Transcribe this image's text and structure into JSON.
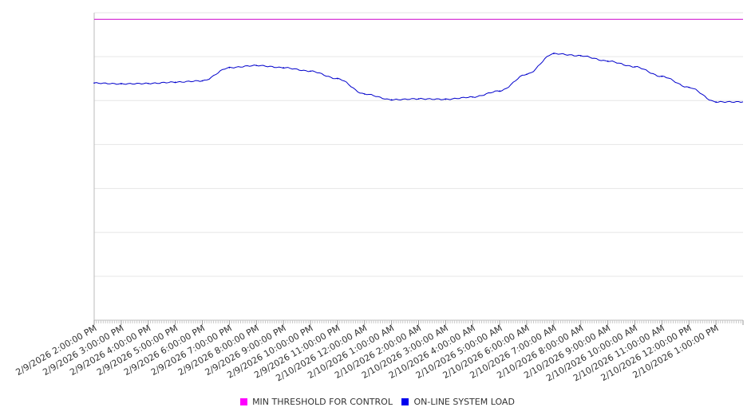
{
  "chart_data": {
    "type": "line",
    "title": "",
    "xlabel": "",
    "ylabel": "",
    "grid": true,
    "legend_position": "bottom",
    "ylim": [
      0,
      7
    ],
    "categories": [
      "2/9/2026 2:00:00 PM",
      "2/9/2026 3:00:00 PM",
      "2/9/2026 4:00:00 PM",
      "2/9/2026 5:00:00 PM",
      "2/9/2026 6:00:00 PM",
      "2/9/2026 7:00:00 PM",
      "2/9/2026 8:00:00 PM",
      "2/9/2026 9:00:00 PM",
      "2/9/2026 10:00:00 PM",
      "2/9/2026 11:00:00 PM",
      "2/10/2026 12:00:00 AM",
      "2/10/2026 1:00:00 AM",
      "2/10/2026 2:00:00 AM",
      "2/10/2026 3:00:00 AM",
      "2/10/2026 4:00:00 AM",
      "2/10/2026 5:00:00 AM",
      "2/10/2026 6:00:00 AM",
      "2/10/2026 7:00:00 AM",
      "2/10/2026 8:00:00 AM",
      "2/10/2026 9:00:00 AM",
      "2/10/2026 10:00:00 AM",
      "2/10/2026 11:00:00 AM",
      "2/10/2026 12:00:00 PM",
      "2/10/2026 1:00:00 PM"
    ],
    "series": [
      {
        "name": "MIN THRESHOLD FOR CONTROL",
        "color": "#cc00cc",
        "values": [
          6.85,
          6.85,
          6.85,
          6.85,
          6.85,
          6.85,
          6.85,
          6.85,
          6.85,
          6.85,
          6.85,
          6.85,
          6.85,
          6.85,
          6.85,
          6.85,
          6.85,
          6.85,
          6.85,
          6.85,
          6.85,
          6.85,
          6.85,
          6.85
        ]
      },
      {
        "name": "ON-LINE SYSTEM LOAD",
        "color": "#0000cc",
        "values": [
          5.4,
          5.38,
          5.39,
          5.42,
          5.45,
          5.75,
          5.8,
          5.75,
          5.67,
          5.5,
          5.15,
          5.02,
          5.04,
          5.03,
          5.08,
          5.22,
          5.6,
          6.07,
          6.02,
          5.9,
          5.77,
          5.55,
          5.3,
          4.97
        ]
      }
    ]
  },
  "legend": {
    "items": [
      {
        "label": "MIN THRESHOLD FOR CONTROL",
        "color": "#ff00ff"
      },
      {
        "label": "ON-LINE SYSTEM LOAD",
        "color": "#0000ee"
      }
    ]
  }
}
